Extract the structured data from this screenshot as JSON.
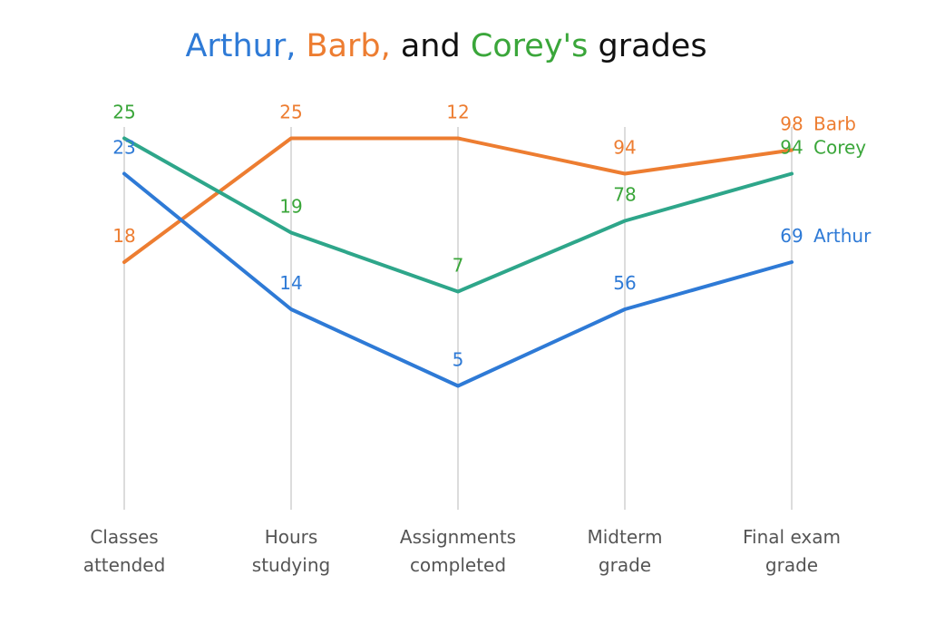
{
  "title": {
    "parts": [
      {
        "text": "Arthur,",
        "color": "#2e7ad6"
      },
      {
        "text": " Barb,",
        "color": "#ed7d31"
      },
      {
        "text": " and",
        "color": "#111111"
      },
      {
        "text": " Corey's",
        "color": "#3aa63a"
      },
      {
        "text": " grades",
        "color": "#111111"
      }
    ]
  },
  "chart_data": {
    "type": "line",
    "chart_subtype": "parallel-coordinates",
    "categories": [
      [
        "Classes",
        "attended"
      ],
      [
        "Hours",
        "studying"
      ],
      [
        "Assignments",
        "completed"
      ],
      [
        "Midterm",
        "grade"
      ],
      [
        "Final exam",
        "grade"
      ]
    ],
    "grid": false,
    "legend": "labels at end of lines (right)",
    "series": [
      {
        "name": "Barb",
        "line_color": "#ed7d31",
        "label_color": "#ed7d31",
        "values": [
          18,
          25,
          12,
          94,
          98
        ],
        "relative_height": [
          0.42,
          0.63,
          0.63,
          0.57,
          0.61
        ]
      },
      {
        "name": "Corey",
        "line_color": "#2ea68a",
        "label_color": "#3aa63a",
        "values": [
          25,
          19,
          7,
          78,
          94
        ],
        "relative_height": [
          0.63,
          0.47,
          0.37,
          0.49,
          0.57
        ]
      },
      {
        "name": "Arthur",
        "line_color": "#2e7ad6",
        "label_color": "#2e7ad6",
        "values": [
          23,
          14,
          5,
          56,
          69
        ],
        "relative_height": [
          0.57,
          0.34,
          0.21,
          0.34,
          0.42
        ]
      }
    ]
  }
}
